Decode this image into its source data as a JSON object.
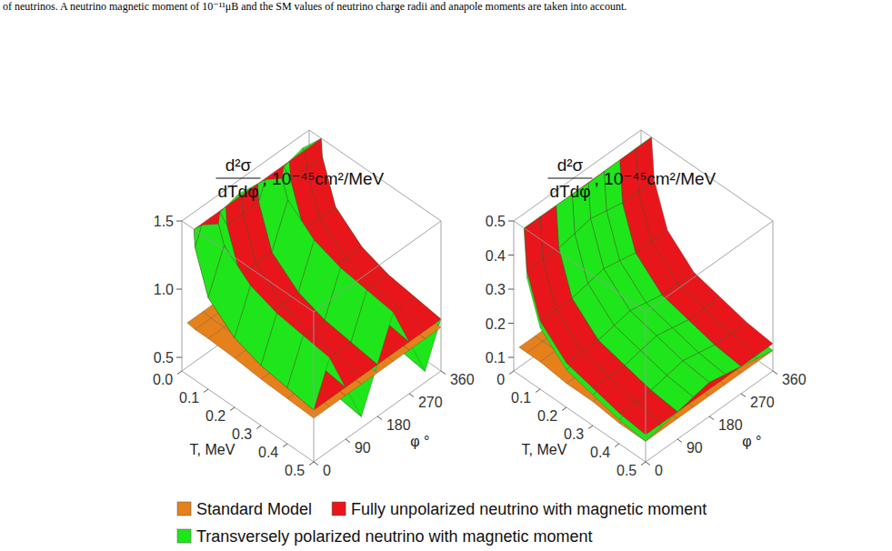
{
  "caption": "of neutrinos. A neutrino magnetic moment of 10⁻¹¹μB and the SM values of neutrino charge radii and anapole moments are taken into account.",
  "chart_data": [
    {
      "type": "surface3d",
      "z_label": {
        "numerator": "d²σ",
        "denominator": "dTdφ",
        "unit": ", 10⁻⁴⁵cm²/MeV"
      },
      "x_label": "T, MeV",
      "y_label": "φ °",
      "x": [
        0.02,
        0.05,
        0.1,
        0.2,
        0.3,
        0.4,
        0.5
      ],
      "y": [
        0,
        45,
        90,
        135,
        180,
        225,
        270,
        315,
        360
      ],
      "xlim": [
        0,
        0.5
      ],
      "ylim": [
        0,
        360
      ],
      "zlim": [
        0.4,
        1.5
      ],
      "xticks": [
        {
          "value": 0,
          "label": "0.0"
        },
        0.1,
        0.2,
        0.3,
        0.4,
        0.5
      ],
      "yticks": [
        0,
        90,
        180,
        270,
        360
      ],
      "zticks": [
        0.5,
        {
          "value": 1,
          "label": "1.0"
        },
        1.5
      ],
      "legend": "bottom",
      "series": [
        {
          "name": "Standard Model",
          "color": "#e6801a",
          "values": [
            [
              0.78,
              0.78,
              0.78,
              0.78,
              0.78,
              0.78,
              0.78,
              0.78,
              0.78
            ],
            [
              0.77,
              0.77,
              0.77,
              0.77,
              0.77,
              0.77,
              0.77,
              0.77,
              0.77
            ],
            [
              0.77,
              0.77,
              0.77,
              0.77,
              0.77,
              0.77,
              0.77,
              0.77,
              0.77
            ],
            [
              0.76,
              0.76,
              0.76,
              0.76,
              0.76,
              0.76,
              0.76,
              0.76,
              0.76
            ],
            [
              0.74,
              0.74,
              0.74,
              0.74,
              0.74,
              0.74,
              0.74,
              0.74,
              0.74
            ],
            [
              0.73,
              0.73,
              0.73,
              0.73,
              0.73,
              0.73,
              0.73,
              0.73,
              0.73
            ],
            [
              0.72,
              0.72,
              0.72,
              0.72,
              0.72,
              0.72,
              0.72,
              0.72,
              0.72
            ]
          ]
        },
        {
          "name": "Fully unpolarized neutrino with magnetic moment",
          "color": "#e8161b",
          "values": [
            [
              2.28,
              2.28,
              2.28,
              2.28,
              2.28,
              2.28,
              2.28,
              2.28,
              2.28
            ],
            [
              1.37,
              1.37,
              1.37,
              1.37,
              1.37,
              1.37,
              1.37,
              1.37,
              1.37
            ],
            [
              1.07,
              1.07,
              1.07,
              1.07,
              1.07,
              1.07,
              1.07,
              1.07,
              1.07
            ],
            [
              0.91,
              0.91,
              0.91,
              0.91,
              0.91,
              0.91,
              0.91,
              0.91,
              0.91
            ],
            [
              0.84,
              0.84,
              0.84,
              0.84,
              0.84,
              0.84,
              0.84,
              0.84,
              0.84
            ],
            [
              0.81,
              0.81,
              0.81,
              0.81,
              0.81,
              0.81,
              0.81,
              0.81,
              0.81
            ],
            [
              0.78,
              0.78,
              0.78,
              0.78,
              0.78,
              0.78,
              0.78,
              0.78,
              0.78
            ]
          ]
        },
        {
          "name": "Transversely polarized neutrino with magnetic moment",
          "color": "#1ee61a",
          "values": [
            [
              2.28,
              2.58,
              2.28,
              1.98,
              2.28,
              2.58,
              2.28,
              1.98,
              2.28
            ],
            [
              1.37,
              1.67,
              1.37,
              1.07,
              1.37,
              1.67,
              1.37,
              1.07,
              1.37
            ],
            [
              1.07,
              1.37,
              1.07,
              0.77,
              1.07,
              1.37,
              1.07,
              0.77,
              1.07
            ],
            [
              0.91,
              1.21,
              0.91,
              0.61,
              0.91,
              1.21,
              0.91,
              0.61,
              0.91
            ],
            [
              0.84,
              1.14,
              0.84,
              0.54,
              0.84,
              1.14,
              0.84,
              0.54,
              0.84
            ],
            [
              0.81,
              1.11,
              0.81,
              0.51,
              0.81,
              1.11,
              0.81,
              0.51,
              0.81
            ],
            [
              0.78,
              1.08,
              0.78,
              0.48,
              0.78,
              1.08,
              0.78,
              0.48,
              0.78
            ]
          ]
        }
      ]
    },
    {
      "type": "surface3d",
      "z_label": {
        "numerator": "d²σ",
        "denominator": "dTdφ",
        "unit": ", 10⁻⁴⁵cm²/MeV"
      },
      "x_label": "T, MeV",
      "y_label": "φ °",
      "x": [
        0.02,
        0.05,
        0.1,
        0.2,
        0.3,
        0.4,
        0.5
      ],
      "y": [
        0,
        45,
        90,
        135,
        180,
        225,
        270,
        315,
        360
      ],
      "xlim": [
        0,
        0.5
      ],
      "ylim": [
        0,
        360
      ],
      "zlim": [
        0.06,
        0.5
      ],
      "xticks": [
        0,
        0.1,
        0.2,
        0.3,
        0.4,
        0.5
      ],
      "yticks": [
        0,
        90,
        180,
        270,
        360
      ],
      "zticks": [
        0.1,
        0.2,
        0.3,
        0.4,
        0.5
      ],
      "legend": "bottom",
      "series": [
        {
          "name": "Standard Model",
          "color": "#e6801a",
          "values": [
            [
              0.14,
              0.14,
              0.14,
              0.14,
              0.14,
              0.14,
              0.14,
              0.14,
              0.14
            ],
            [
              0.14,
              0.14,
              0.14,
              0.14,
              0.14,
              0.14,
              0.14,
              0.14,
              0.14
            ],
            [
              0.14,
              0.14,
              0.14,
              0.14,
              0.14,
              0.14,
              0.14,
              0.14,
              0.14
            ],
            [
              0.13,
              0.13,
              0.13,
              0.13,
              0.13,
              0.13,
              0.13,
              0.13,
              0.13
            ],
            [
              0.13,
              0.13,
              0.13,
              0.13,
              0.13,
              0.13,
              0.13,
              0.13,
              0.13
            ],
            [
              0.12,
              0.12,
              0.12,
              0.12,
              0.12,
              0.12,
              0.12,
              0.12,
              0.12
            ],
            [
              0.12,
              0.12,
              0.12,
              0.12,
              0.12,
              0.12,
              0.12,
              0.12,
              0.12
            ]
          ]
        },
        {
          "name": "Fully unpolarized neutrino with magnetic moment",
          "color": "#e8161b",
          "values": [
            [
              0.74,
              0.74,
              0.74,
              0.74,
              0.74,
              0.74,
              0.74,
              0.74,
              0.74
            ],
            [
              0.38,
              0.38,
              0.38,
              0.38,
              0.38,
              0.38,
              0.38,
              0.38,
              0.38
            ],
            [
              0.26,
              0.26,
              0.26,
              0.26,
              0.26,
              0.26,
              0.26,
              0.26,
              0.26
            ],
            [
              0.19,
              0.19,
              0.19,
              0.19,
              0.19,
              0.19,
              0.19,
              0.19,
              0.19
            ],
            [
              0.17,
              0.17,
              0.17,
              0.17,
              0.17,
              0.17,
              0.17,
              0.17,
              0.17
            ],
            [
              0.15,
              0.15,
              0.15,
              0.15,
              0.15,
              0.15,
              0.15,
              0.15,
              0.15
            ],
            [
              0.14,
              0.14,
              0.14,
              0.14,
              0.14,
              0.14,
              0.14,
              0.14,
              0.14
            ]
          ]
        },
        {
          "name": "Transversely polarized neutrino with magnetic moment",
          "color": "#1ee61a",
          "values": [
            [
              0.72,
              0.73,
              0.74,
              0.75,
              0.76,
              0.75,
              0.74,
              0.73,
              0.72
            ],
            [
              0.36,
              0.37,
              0.38,
              0.39,
              0.4,
              0.39,
              0.38,
              0.37,
              0.36
            ],
            [
              0.24,
              0.25,
              0.26,
              0.27,
              0.28,
              0.27,
              0.26,
              0.25,
              0.24
            ],
            [
              0.17,
              0.18,
              0.19,
              0.2,
              0.21,
              0.2,
              0.19,
              0.18,
              0.17
            ],
            [
              0.15,
              0.16,
              0.17,
              0.18,
              0.19,
              0.18,
              0.17,
              0.16,
              0.15
            ],
            [
              0.13,
              0.14,
              0.15,
              0.16,
              0.17,
              0.16,
              0.15,
              0.14,
              0.13
            ],
            [
              0.12,
              0.13,
              0.14,
              0.15,
              0.16,
              0.15,
              0.14,
              0.13,
              0.12
            ]
          ]
        }
      ]
    }
  ]
}
